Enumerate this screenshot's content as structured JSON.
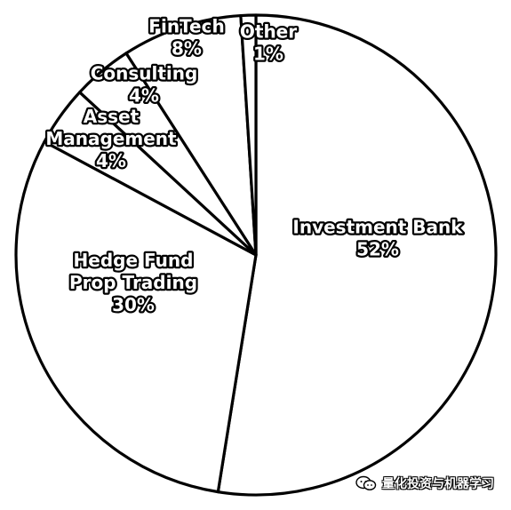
{
  "chart_data": {
    "type": "pie",
    "title": "",
    "slices": [
      {
        "label_lines": [
          "Investment Bank"
        ],
        "value": 52,
        "value_label": "52%"
      },
      {
        "label_lines": [
          "Hedge Fund",
          "Prop Trading"
        ],
        "value": 30,
        "value_label": "30%"
      },
      {
        "label_lines": [
          "Asset",
          "Management"
        ],
        "value": 4,
        "value_label": "4%"
      },
      {
        "label_lines": [
          "Consulting"
        ],
        "value": 4,
        "value_label": "4%"
      },
      {
        "label_lines": [
          "FinTech"
        ],
        "value": 8,
        "value_label": "8%"
      },
      {
        "label_lines": [
          "Other"
        ],
        "value": 1,
        "value_label": "1%"
      }
    ],
    "start_angle": "12 o'clock",
    "direction": "clockwise",
    "fill_color": "#ffffff",
    "edge_color": "#000000",
    "legend": "none"
  },
  "watermark": {
    "text": "量化投资与机器学习",
    "icon": "wechat-icon"
  }
}
